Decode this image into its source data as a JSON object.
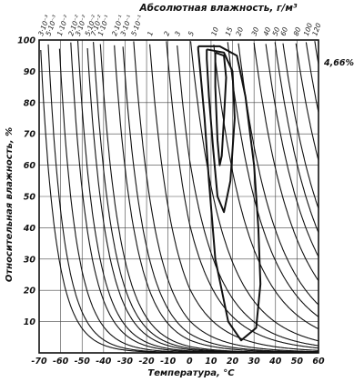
{
  "chart_data": {
    "type": "line",
    "title": "Абсолютная влажность, г/м³",
    "xlabel": "Температура, °С",
    "ylabel": "Относительная влажность, %",
    "xlim": [
      -70,
      60
    ],
    "ylim": [
      0,
      100
    ],
    "x_ticks": [
      "-70",
      "-60",
      "-50",
      "-40",
      "-30",
      "-20",
      "-10",
      "0",
      "10",
      "20",
      "30",
      "40",
      "50",
      "60"
    ],
    "y_ticks": [
      "10",
      "20",
      "30",
      "40",
      "50",
      "60",
      "70",
      "80",
      "90",
      "100"
    ],
    "grid": true,
    "isolines": {
      "name": "Абсолютная влажность, г/м³",
      "labels": [
        "3·10⁻³",
        "5·10⁻³",
        "1·10⁻²",
        "2·10⁻²",
        "3·10⁻²",
        "5·10⁻²",
        "7·10⁻²",
        "1·10⁻¹",
        "2·10⁻¹",
        "3·10⁻¹",
        "5·10⁻¹",
        "1",
        "2",
        "3",
        "5",
        "10",
        "15",
        "20",
        "30",
        "40",
        "50",
        "60",
        "80",
        "100",
        "120"
      ],
      "values": [
        0.003,
        0.005,
        0.01,
        0.02,
        0.03,
        0.05,
        0.07,
        0.1,
        0.2,
        0.3,
        0.5,
        1,
        2,
        3,
        5,
        10,
        15,
        20,
        30,
        40,
        50,
        60,
        80,
        100,
        120
      ]
    },
    "contours": [
      {
        "x": [
          4,
          14,
          22,
          26,
          30,
          32,
          33,
          31,
          24,
          18,
          12,
          9,
          7,
          5,
          4,
          4
        ],
        "y": [
          98,
          98,
          95,
          82,
          60,
          40,
          22,
          8,
          4,
          10,
          30,
          55,
          75,
          90,
          97,
          98
        ]
      },
      {
        "x": [
          8,
          16,
          20,
          21,
          19,
          16,
          13,
          11,
          9,
          8,
          8
        ],
        "y": [
          97,
          96,
          90,
          75,
          55,
          45,
          50,
          65,
          82,
          94,
          97
        ]
      },
      {
        "x": [
          12,
          16,
          17,
          16,
          15,
          14,
          13,
          12,
          12
        ],
        "y": [
          96,
          95,
          88,
          75,
          63,
          60,
          68,
          85,
          96
        ]
      }
    ],
    "annotation": {
      "text": "4,66%",
      "x": 60,
      "y": 92
    }
  }
}
